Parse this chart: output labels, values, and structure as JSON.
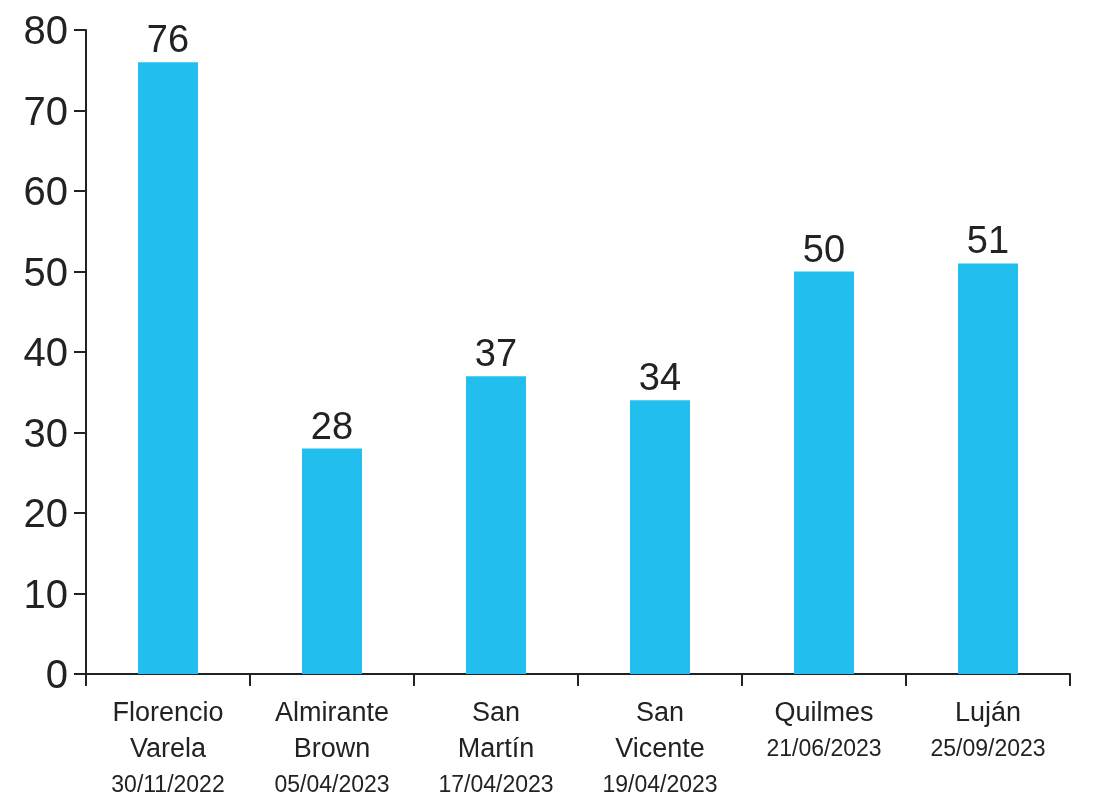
{
  "chart_data": {
    "type": "bar",
    "categories": [
      "Florencio Varela\n30/11/2022",
      "Almirante Brown\n05/04/2023",
      "San Martín\n17/04/2023",
      "San Vicente\n19/04/2023",
      "Quilmes\n21/06/2023",
      "Luján\n25/09/2023"
    ],
    "values": [
      76,
      28,
      37,
      34,
      50,
      51
    ],
    "color": "#22bfee",
    "ylim": [
      0,
      80
    ],
    "yticks": [
      0,
      10,
      20,
      30,
      40,
      50,
      60,
      70,
      80
    ],
    "grid": false,
    "data_labels": true
  }
}
